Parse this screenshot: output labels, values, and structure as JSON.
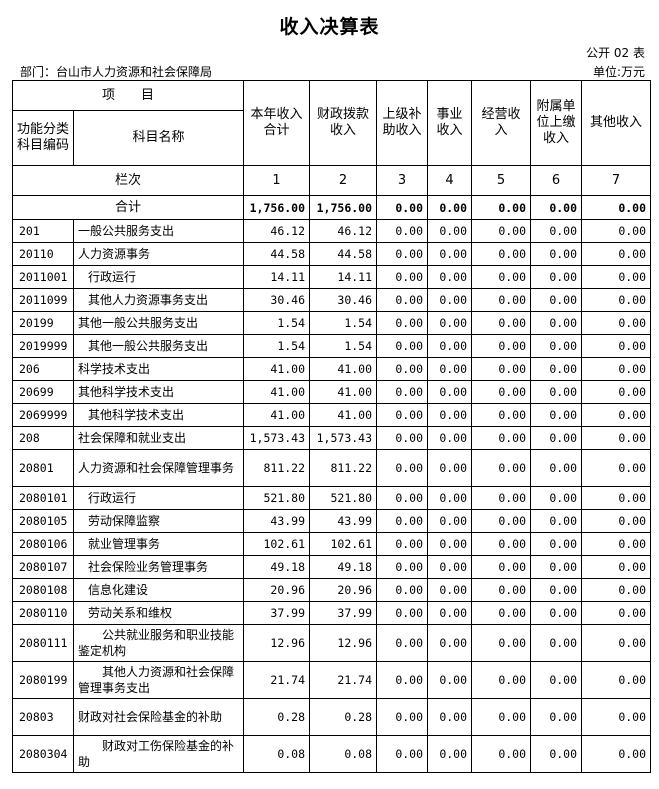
{
  "title": "收入决算表",
  "table_no": "公开 02 表",
  "department": "部门：台山市人力资源和社会保障局",
  "unit": "单位:万元",
  "headers": {
    "item": "项　　目",
    "code": "功能分类科目编码",
    "name": "科目名称",
    "cols": [
      "本年收入合计",
      "财政拨款收入",
      "上级补助收入",
      "事业收入",
      "经营收入",
      "附属单位上缴收入",
      "其他收入"
    ]
  },
  "col_index": {
    "label": "栏次",
    "nums": [
      "1",
      "2",
      "3",
      "4",
      "5",
      "6",
      "7"
    ]
  },
  "total": {
    "label": "合计",
    "values": [
      "1,756.00",
      "1,756.00",
      "0.00",
      "0.00",
      "0.00",
      "0.00",
      "0.00"
    ]
  },
  "rows": [
    {
      "code": "201",
      "name": "一般公共服务支出",
      "indent": false,
      "tall": false,
      "values": [
        "46.12",
        "46.12",
        "0.00",
        "0.00",
        "0.00",
        "0.00",
        "0.00"
      ]
    },
    {
      "code": "20110",
      "name": "人力资源事务",
      "indent": false,
      "tall": false,
      "values": [
        "44.58",
        "44.58",
        "0.00",
        "0.00",
        "0.00",
        "0.00",
        "0.00"
      ]
    },
    {
      "code": "2011001",
      "name": "行政运行",
      "indent": true,
      "tall": false,
      "values": [
        "14.11",
        "14.11",
        "0.00",
        "0.00",
        "0.00",
        "0.00",
        "0.00"
      ]
    },
    {
      "code": "2011099",
      "name": "其他人力资源事务支出",
      "indent": true,
      "tall": false,
      "values": [
        "30.46",
        "30.46",
        "0.00",
        "0.00",
        "0.00",
        "0.00",
        "0.00"
      ]
    },
    {
      "code": "20199",
      "name": "其他一般公共服务支出",
      "indent": false,
      "tall": false,
      "values": [
        "1.54",
        "1.54",
        "0.00",
        "0.00",
        "0.00",
        "0.00",
        "0.00"
      ]
    },
    {
      "code": "2019999",
      "name": "其他一般公共服务支出",
      "indent": true,
      "tall": false,
      "values": [
        "1.54",
        "1.54",
        "0.00",
        "0.00",
        "0.00",
        "0.00",
        "0.00"
      ]
    },
    {
      "code": "206",
      "name": "科学技术支出",
      "indent": false,
      "tall": false,
      "values": [
        "41.00",
        "41.00",
        "0.00",
        "0.00",
        "0.00",
        "0.00",
        "0.00"
      ]
    },
    {
      "code": "20699",
      "name": "其他科学技术支出",
      "indent": false,
      "tall": false,
      "values": [
        "41.00",
        "41.00",
        "0.00",
        "0.00",
        "0.00",
        "0.00",
        "0.00"
      ]
    },
    {
      "code": "2069999",
      "name": "其他科学技术支出",
      "indent": true,
      "tall": false,
      "values": [
        "41.00",
        "41.00",
        "0.00",
        "0.00",
        "0.00",
        "0.00",
        "0.00"
      ]
    },
    {
      "code": "208",
      "name": "社会保障和就业支出",
      "indent": false,
      "tall": false,
      "values": [
        "1,573.43",
        "1,573.43",
        "0.00",
        "0.00",
        "0.00",
        "0.00",
        "0.00"
      ]
    },
    {
      "code": "20801",
      "name": "人力资源和社会保障管理事务",
      "indent": false,
      "tall": true,
      "values": [
        "811.22",
        "811.22",
        "0.00",
        "0.00",
        "0.00",
        "0.00",
        "0.00"
      ]
    },
    {
      "code": "2080101",
      "name": "行政运行",
      "indent": true,
      "tall": false,
      "values": [
        "521.80",
        "521.80",
        "0.00",
        "0.00",
        "0.00",
        "0.00",
        "0.00"
      ]
    },
    {
      "code": "2080105",
      "name": "劳动保障监察",
      "indent": true,
      "tall": false,
      "values": [
        "43.99",
        "43.99",
        "0.00",
        "0.00",
        "0.00",
        "0.00",
        "0.00"
      ]
    },
    {
      "code": "2080106",
      "name": "就业管理事务",
      "indent": true,
      "tall": false,
      "values": [
        "102.61",
        "102.61",
        "0.00",
        "0.00",
        "0.00",
        "0.00",
        "0.00"
      ]
    },
    {
      "code": "2080107",
      "name": "社会保险业务管理事务",
      "indent": true,
      "tall": false,
      "values": [
        "49.18",
        "49.18",
        "0.00",
        "0.00",
        "0.00",
        "0.00",
        "0.00"
      ]
    },
    {
      "code": "2080108",
      "name": "信息化建设",
      "indent": true,
      "tall": false,
      "values": [
        "20.96",
        "20.96",
        "0.00",
        "0.00",
        "0.00",
        "0.00",
        "0.00"
      ]
    },
    {
      "code": "2080110",
      "name": "劳动关系和维权",
      "indent": true,
      "tall": false,
      "values": [
        "37.99",
        "37.99",
        "0.00",
        "0.00",
        "0.00",
        "0.00",
        "0.00"
      ]
    },
    {
      "code": "2080111",
      "name": "　　公共就业服务和职业技能鉴定机构",
      "indent": false,
      "tall": true,
      "values": [
        "12.96",
        "12.96",
        "0.00",
        "0.00",
        "0.00",
        "0.00",
        "0.00"
      ]
    },
    {
      "code": "2080199",
      "name": "　　其他人力资源和社会保障管理事务支出",
      "indent": false,
      "tall": true,
      "values": [
        "21.74",
        "21.74",
        "0.00",
        "0.00",
        "0.00",
        "0.00",
        "0.00"
      ]
    },
    {
      "code": "20803",
      "name": "财政对社会保险基金的补助",
      "indent": false,
      "tall": true,
      "values": [
        "0.28",
        "0.28",
        "0.00",
        "0.00",
        "0.00",
        "0.00",
        "0.00"
      ]
    },
    {
      "code": "2080304",
      "name": "　　财政对工伤保险基金的补助",
      "indent": false,
      "tall": true,
      "values": [
        "0.08",
        "0.08",
        "0.00",
        "0.00",
        "0.00",
        "0.00",
        "0.00"
      ]
    }
  ]
}
